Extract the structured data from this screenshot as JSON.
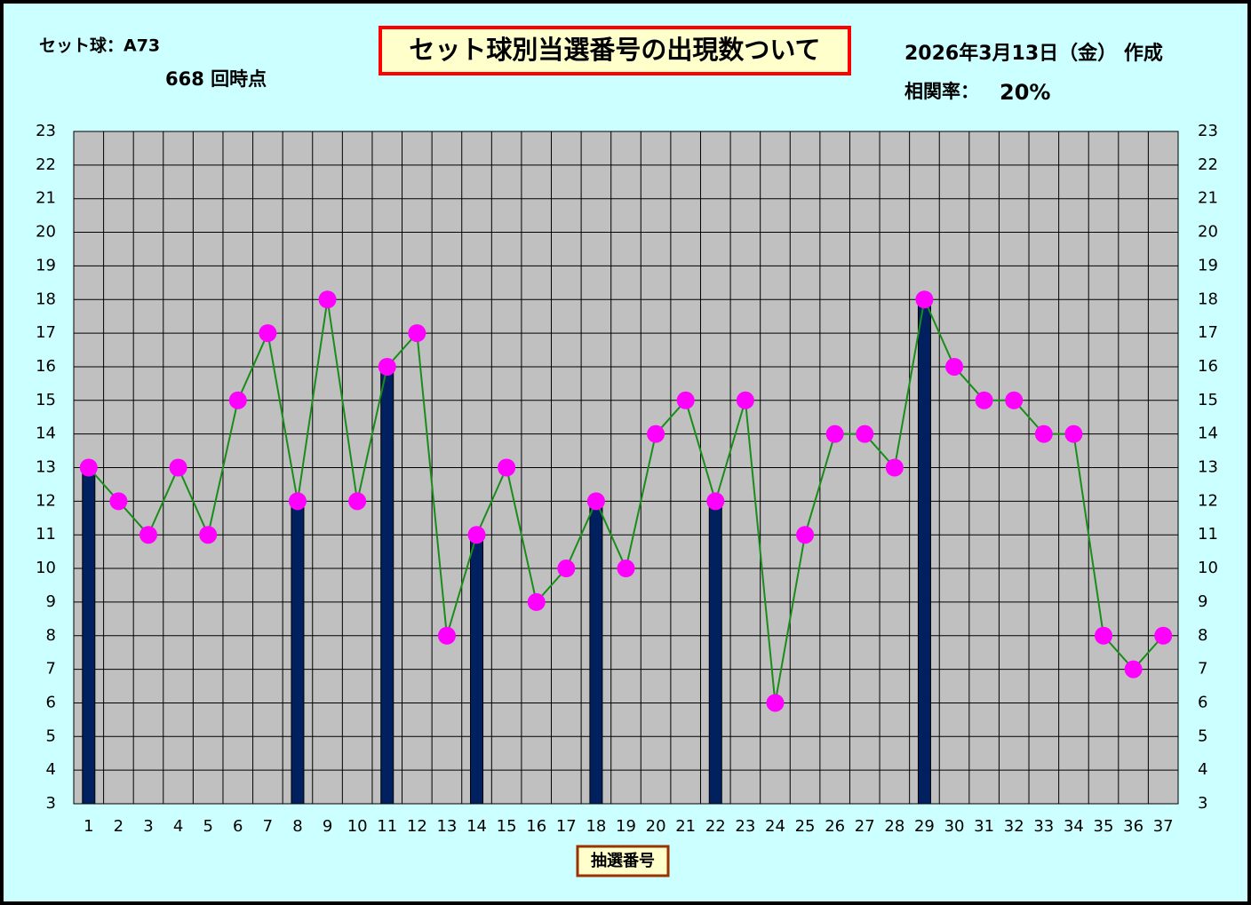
{
  "chart_data": {
    "type": "combo",
    "title": "セット球別当選番号の出現数ついて",
    "set_label": "セット球：A73",
    "draw_label": "668 回時点",
    "date_label": "2026年3月13日（金） 作成",
    "correlation_label": "相関率：",
    "correlation": "20%",
    "x_label": "抽選番号",
    "categories": [
      "1",
      "2",
      "3",
      "4",
      "5",
      "6",
      "7",
      "8",
      "9",
      "10",
      "11",
      "12",
      "13",
      "14",
      "15",
      "16",
      "17",
      "18",
      "19",
      "20",
      "21",
      "22",
      "23",
      "24",
      "25",
      "26",
      "27",
      "28",
      "29",
      "30",
      "31",
      "32",
      "33",
      "34",
      "35",
      "36",
      "37"
    ],
    "series": [
      {
        "type": "bar",
        "color": "#002060",
        "values": [
          13,
          null,
          null,
          null,
          null,
          null,
          null,
          12,
          null,
          null,
          16,
          null,
          null,
          11,
          null,
          null,
          null,
          12,
          null,
          null,
          null,
          12,
          null,
          null,
          null,
          null,
          null,
          null,
          18,
          null,
          null,
          null,
          null,
          null,
          null,
          null,
          null
        ]
      },
      {
        "type": "line",
        "color": "#1a8c1a",
        "marker_color": "#ff00ff",
        "values": [
          13,
          12,
          11,
          13,
          11,
          15,
          17,
          12,
          18,
          12,
          16,
          17,
          8,
          11,
          13,
          9,
          10,
          12,
          10,
          14,
          15,
          12,
          15,
          6,
          11,
          14,
          14,
          13,
          18,
          16,
          15,
          15,
          14,
          14,
          8,
          7,
          8
        ]
      }
    ],
    "ylim": [
      3,
      23
    ],
    "yticks": [
      3,
      4,
      5,
      6,
      7,
      8,
      9,
      10,
      11,
      12,
      13,
      14,
      15,
      16,
      17,
      18,
      19,
      20,
      21,
      22,
      23
    ],
    "grid": true
  }
}
